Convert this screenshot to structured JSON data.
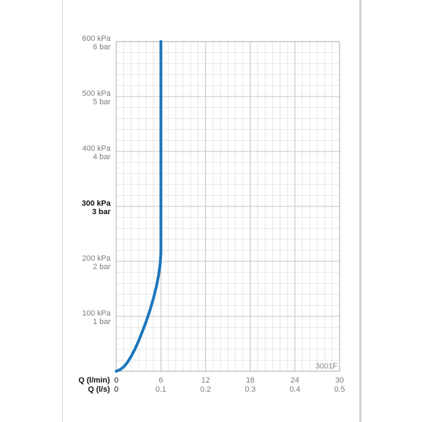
{
  "chart_data": {
    "type": "line",
    "code_label": "3001F",
    "x_axes": [
      {
        "name": "Q (l/min)",
        "ticks": [
          "0",
          "6",
          "12",
          "18",
          "24",
          "30"
        ]
      },
      {
        "name": "Q (l/s)",
        "ticks": [
          "0",
          "0.1",
          "0.2",
          "0.3",
          "0.4",
          "0.5"
        ]
      }
    ],
    "y_axis": {
      "ticks": [
        {
          "value": 100,
          "kpa": "100 kPa",
          "bar": "1 bar",
          "bold": false
        },
        {
          "value": 200,
          "kpa": "200 kPa",
          "bar": "2 bar",
          "bold": false
        },
        {
          "value": 300,
          "kpa": "300 kPa",
          "bar": "3 bar",
          "bold": true
        },
        {
          "value": 400,
          "kpa": "400 kPa",
          "bar": "4 bar",
          "bold": false
        },
        {
          "value": 500,
          "kpa": "500 kPa",
          "bar": "5 bar",
          "bold": false
        },
        {
          "value": 600,
          "kpa": "600 kPa",
          "bar": "6 bar",
          "bold": false
        }
      ]
    },
    "xlim": [
      0,
      30
    ],
    "ylim": [
      0,
      600
    ],
    "grid": true,
    "series_color": "#1b75bb",
    "points": [
      {
        "x": 0,
        "y": 0
      },
      {
        "x": 0.5,
        "y": 3
      },
      {
        "x": 1,
        "y": 8
      },
      {
        "x": 1.5,
        "y": 16
      },
      {
        "x": 2,
        "y": 27
      },
      {
        "x": 2.5,
        "y": 40
      },
      {
        "x": 3,
        "y": 55
      },
      {
        "x": 3.5,
        "y": 72
      },
      {
        "x": 4,
        "y": 90
      },
      {
        "x": 4.5,
        "y": 110
      },
      {
        "x": 5,
        "y": 133
      },
      {
        "x": 5.4,
        "y": 155
      },
      {
        "x": 5.7,
        "y": 175
      },
      {
        "x": 5.9,
        "y": 195
      },
      {
        "x": 6,
        "y": 215
      },
      {
        "x": 6,
        "y": 300
      },
      {
        "x": 6,
        "y": 400
      },
      {
        "x": 6,
        "y": 500
      },
      {
        "x": 6,
        "y": 600
      }
    ]
  }
}
